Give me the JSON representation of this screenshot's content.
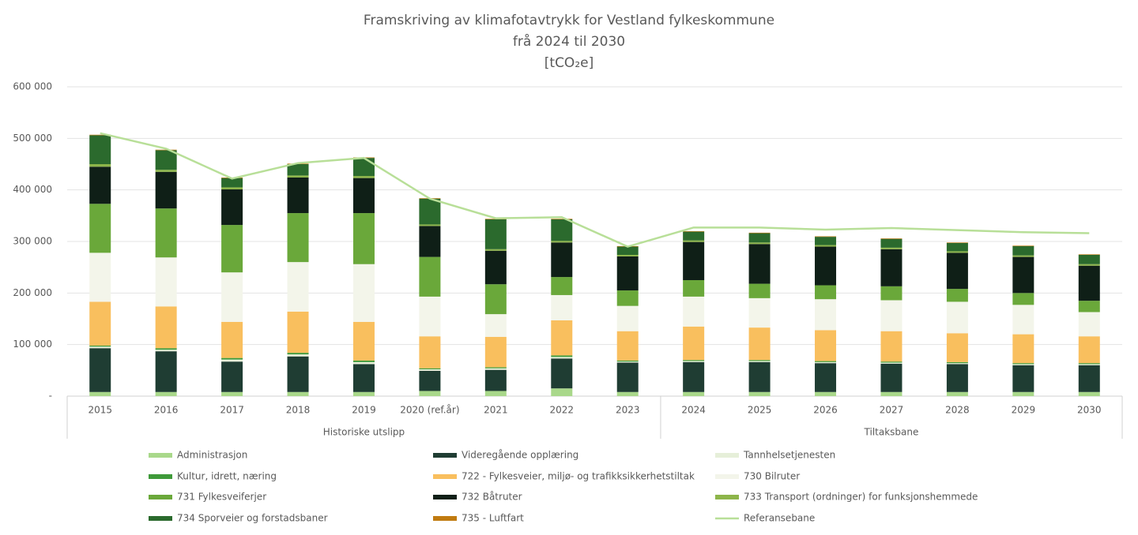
{
  "chart_data": {
    "type": "bar",
    "stacked": true,
    "title_lines": [
      "Framskriving av klimafotavtrykk for Vestland fylkeskommune",
      "frå 2024 til 2030",
      "[tCO₂e]"
    ],
    "groups": [
      {
        "name": "Historiske utslipp",
        "categories": [
          "2015",
          "2016",
          "2017",
          "2018",
          "2019",
          "2020 (ref.år)",
          "2021",
          "2022",
          "2023"
        ]
      },
      {
        "name": "Tiltaksbane",
        "categories": [
          "2024",
          "2025",
          "2026",
          "2027",
          "2028",
          "2029",
          "2030"
        ]
      }
    ],
    "ylim": [
      0,
      600000
    ],
    "yticks": [
      {
        "value": 0,
        "label": "-"
      },
      {
        "value": 100000,
        "label": "100 000"
      },
      {
        "value": 200000,
        "label": "200 000"
      },
      {
        "value": 300000,
        "label": "300 000"
      },
      {
        "value": 400000,
        "label": "400 000"
      },
      {
        "value": 500000,
        "label": "500 000"
      },
      {
        "value": 600000,
        "label": "600 000"
      }
    ],
    "grid": true,
    "series": [
      {
        "name": "Administrasjon",
        "color": "#a9d88a",
        "values": [
          8000,
          8000,
          8000,
          8000,
          8000,
          10000,
          10000,
          15000,
          8000,
          8000,
          8000,
          8000,
          8000,
          8000,
          8000,
          8000
        ]
      },
      {
        "name": "Videregående opplæring",
        "color": "#1f3d33",
        "values": [
          85000,
          79000,
          59000,
          69000,
          54000,
          39000,
          41000,
          58000,
          57000,
          58000,
          58000,
          56000,
          55000,
          54000,
          52000,
          52000
        ]
      },
      {
        "name": "Tannhelsetjenesten",
        "color": "#e6efd9",
        "values": [
          3000,
          3000,
          4000,
          4000,
          4000,
          3000,
          3000,
          3000,
          2000,
          2000,
          2000,
          2000,
          2000,
          2000,
          2000,
          2000
        ]
      },
      {
        "name": "Kultur, idrett, næring",
        "color": "#3f9a3a",
        "values": [
          2000,
          3000,
          3000,
          3000,
          3000,
          2000,
          2000,
          3000,
          2000,
          2000,
          2000,
          2000,
          2000,
          2000,
          2000,
          2000
        ]
      },
      {
        "name": "722 - Fylkesveier, miljø- og trafikksikkerhetstiltak",
        "color": "#f9bf5e",
        "values": [
          85000,
          81000,
          70000,
          80000,
          75000,
          62000,
          59000,
          68000,
          57000,
          65000,
          63000,
          60000,
          59000,
          56000,
          56000,
          52000
        ]
      },
      {
        "name": "730 Bilruter",
        "color": "#f3f5ea",
        "values": [
          95000,
          95000,
          96000,
          96000,
          112000,
          77000,
          44000,
          49000,
          49000,
          58000,
          57000,
          60000,
          60000,
          61000,
          57000,
          47000
        ]
      },
      {
        "name": "731 Fylkesveiferjer",
        "color": "#6aa83a",
        "values": [
          95000,
          95000,
          92000,
          95000,
          99000,
          77000,
          58000,
          35000,
          30000,
          32000,
          28000,
          27000,
          27000,
          25000,
          23000,
          22000
        ]
      },
      {
        "name": "732 Båtruter",
        "color": "#0f1f17",
        "values": [
          72000,
          71000,
          69000,
          69000,
          68000,
          60000,
          65000,
          67000,
          66000,
          74000,
          77000,
          75000,
          72000,
          70000,
          70000,
          68000
        ]
      },
      {
        "name": "733 Transport (ordninger) for funksjonshemmede",
        "color": "#8db54a",
        "values": [
          5000,
          4000,
          4000,
          4000,
          4000,
          3000,
          3000,
          3000,
          3000,
          3000,
          3000,
          3000,
          3000,
          3000,
          3000,
          3000
        ]
      },
      {
        "name": "734 Sporveier og forstadsbaner",
        "color": "#2b6a2d",
        "values": [
          56000,
          38000,
          18000,
          22000,
          35000,
          50000,
          58000,
          42000,
          16000,
          17000,
          18000,
          16000,
          17000,
          16000,
          18000,
          18000
        ]
      },
      {
        "name": "735 - Luftfart",
        "color": "#c07b10",
        "values": [
          1000,
          1000,
          1000,
          1000,
          1000,
          1000,
          1000,
          1000,
          1000,
          1000,
          1000,
          1000,
          1000,
          1000,
          1000,
          1000
        ]
      },
      {
        "name": "Referansebane",
        "type": "line",
        "color": "#b8df98",
        "values": [
          510000,
          480000,
          422000,
          452000,
          462000,
          383000,
          345000,
          347000,
          290000,
          327000,
          327000,
          323000,
          326000,
          322000,
          318000,
          316000
        ]
      }
    ]
  }
}
